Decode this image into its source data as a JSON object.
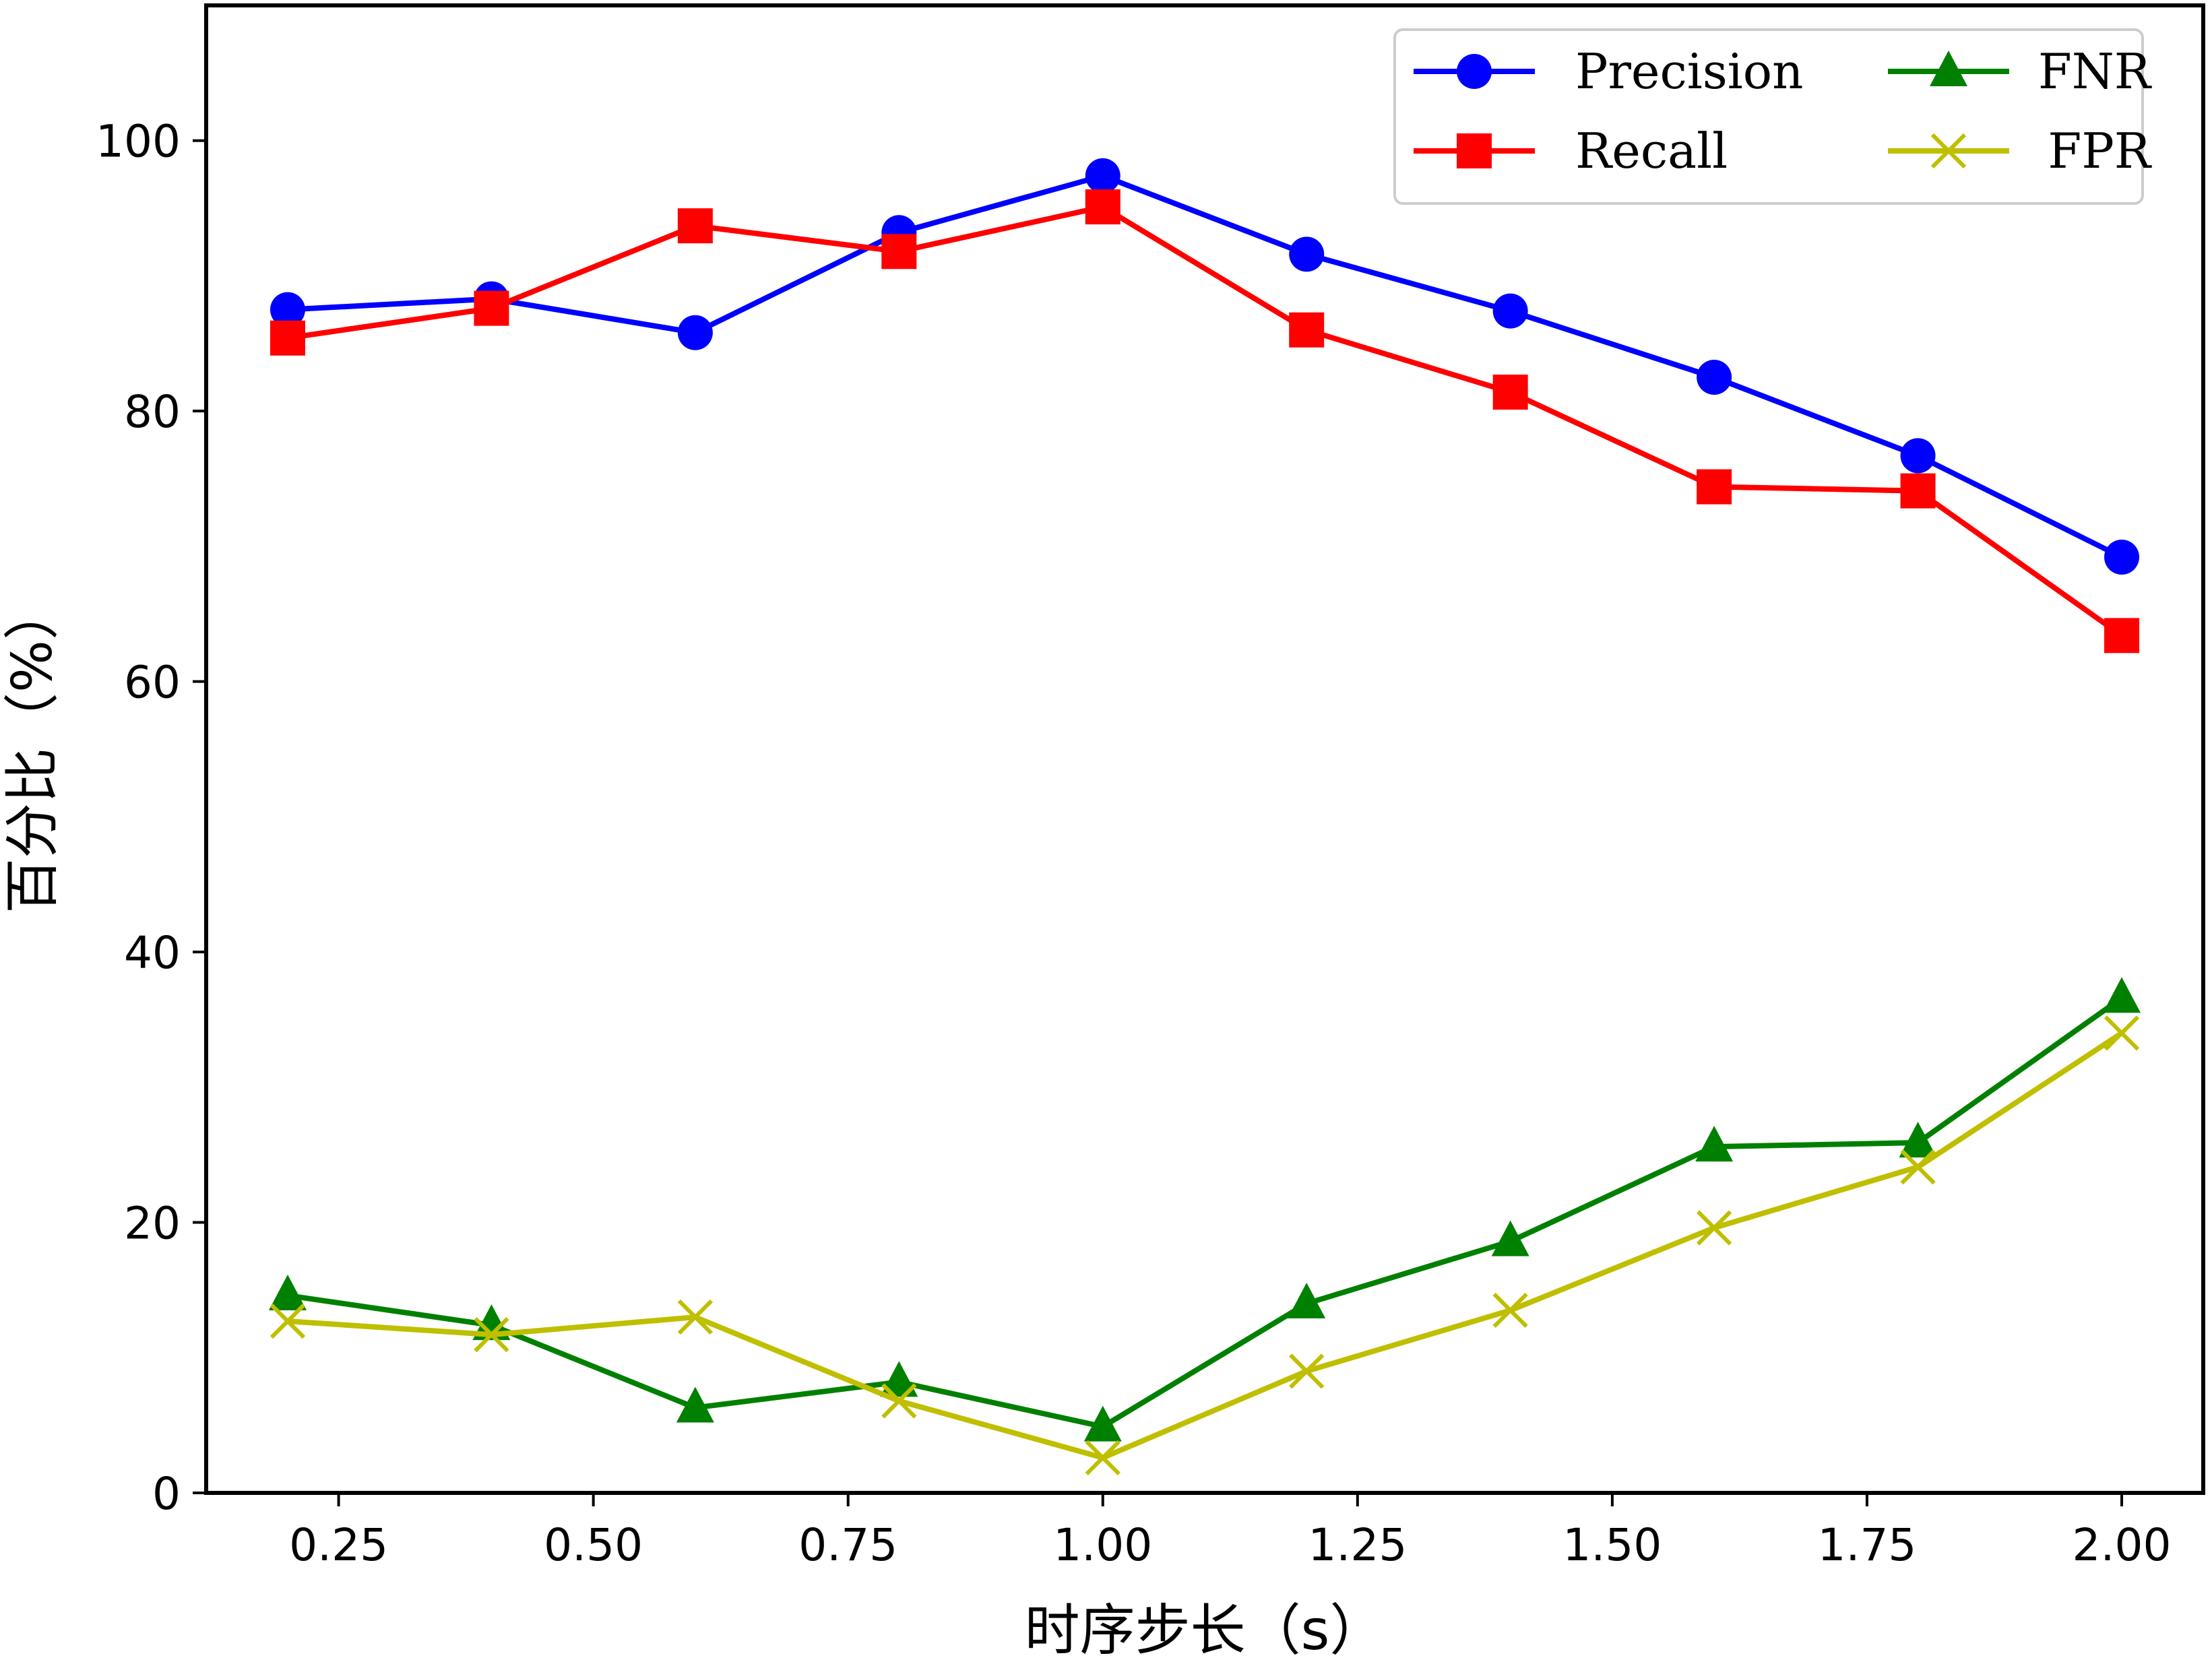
{
  "chart_data": {
    "type": "line",
    "xlabel": "时序步长（s）",
    "ylabel": "百分比（%）",
    "xlim": [
      0.12,
      2.08
    ],
    "ylim": [
      0,
      110
    ],
    "xticks": [
      "0.25",
      "0.50",
      "0.75",
      "1.00",
      "1.25",
      "1.50",
      "1.75",
      "2.00"
    ],
    "yticks": [
      "0",
      "20",
      "40",
      "60",
      "80",
      "100"
    ],
    "grid": false,
    "legend": {
      "placement": "top-right",
      "columns": 2
    },
    "x": [
      0.2,
      0.4,
      0.6,
      0.8,
      1.0,
      1.2,
      1.4,
      1.6,
      1.8,
      2.0
    ],
    "series": [
      {
        "name": "Precision",
        "color": "#0000ff",
        "marker": "circle",
        "values": [
          87.5,
          88.3,
          85.8,
          93.2,
          97.4,
          91.6,
          87.4,
          82.5,
          76.7,
          69.2
        ]
      },
      {
        "name": "Recall",
        "color": "#ff0000",
        "marker": "square",
        "values": [
          85.4,
          87.6,
          93.7,
          91.8,
          95.1,
          86.0,
          81.4,
          74.4,
          74.1,
          63.4
        ]
      },
      {
        "name": "FNR",
        "color": "#008000",
        "marker": "triangle",
        "values": [
          14.6,
          12.4,
          6.3,
          8.2,
          4.9,
          14.0,
          18.6,
          25.6,
          25.9,
          36.6
        ]
      },
      {
        "name": "FPR",
        "color": "#bfbf00",
        "marker": "x",
        "values": [
          12.7,
          11.7,
          13.0,
          6.8,
          2.6,
          9.0,
          13.5,
          19.6,
          24.1,
          34.0
        ]
      }
    ]
  }
}
